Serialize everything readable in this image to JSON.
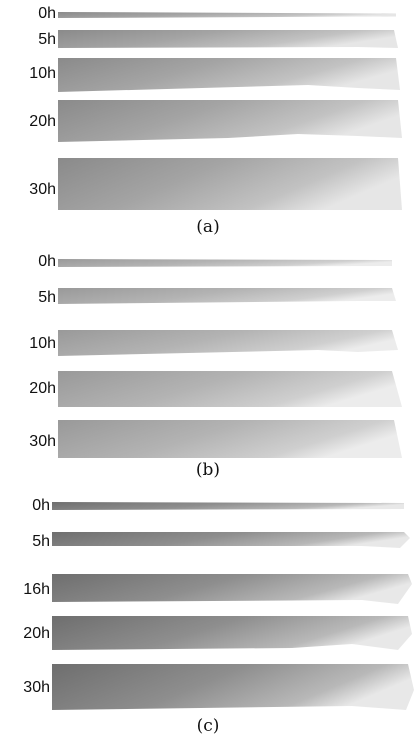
{
  "panels": [
    {
      "caption": "(a)",
      "rows": [
        {
          "label": "0h"
        },
        {
          "label": "5h"
        },
        {
          "label": "10h"
        },
        {
          "label": "20h"
        },
        {
          "label": "30h"
        }
      ]
    },
    {
      "caption": "(b)",
      "rows": [
        {
          "label": "0h"
        },
        {
          "label": "5h"
        },
        {
          "label": "10h"
        },
        {
          "label": "20h"
        },
        {
          "label": "30h"
        }
      ]
    },
    {
      "caption": "(c)",
      "rows": [
        {
          "label": "0h"
        },
        {
          "label": "5h"
        },
        {
          "label": "16h"
        },
        {
          "label": "20h"
        },
        {
          "label": "30h"
        }
      ]
    }
  ]
}
